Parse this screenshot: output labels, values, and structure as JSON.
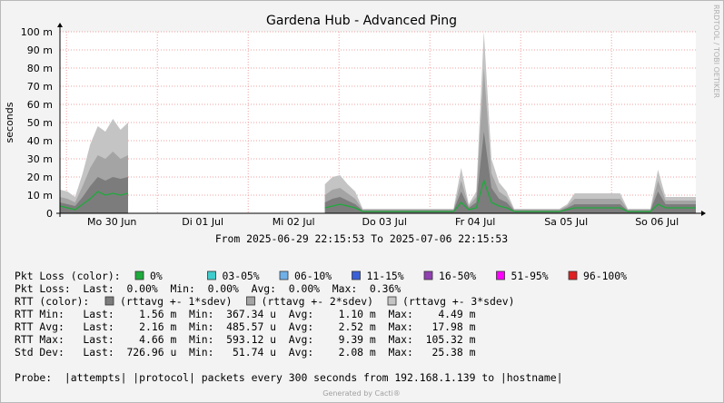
{
  "chart_data": {
    "type": "area",
    "title": "Gardena Hub - Advanced Ping",
    "ylabel": "seconds",
    "side_label": "RRDTOOL / TOBI OETIKER",
    "subtitle": "From 2025-06-29 22:15:53 To 2025-07-06 22:15:53",
    "x": [
      0,
      2,
      4,
      6,
      8,
      10,
      12,
      14,
      16,
      18,
      20,
      22,
      24,
      26,
      28,
      30,
      32,
      34,
      36,
      38,
      40,
      42,
      44,
      46,
      48,
      50,
      52,
      54,
      56,
      58,
      60,
      62,
      64,
      66,
      68,
      70,
      72,
      74,
      76,
      78,
      80,
      82,
      84,
      86,
      88,
      90,
      92,
      94,
      96,
      98,
      100,
      102,
      104,
      106,
      108,
      110,
      112,
      114,
      116,
      118,
      120,
      122,
      124,
      126,
      128,
      130,
      132,
      134,
      136,
      138,
      140,
      142,
      144,
      146,
      148,
      150,
      152,
      154,
      156,
      158,
      160,
      162,
      164,
      166,
      168
    ],
    "xlim": [
      0,
      168
    ],
    "xticks": [
      {
        "value": 13.73,
        "label": "Mo 30 Jun"
      },
      {
        "value": 37.73,
        "label": "Di 01 Jul"
      },
      {
        "value": 61.73,
        "label": "Mi 02 Jul"
      },
      {
        "value": 85.73,
        "label": "Do 03 Jul"
      },
      {
        "value": 109.73,
        "label": "Fr 04 Jul"
      },
      {
        "value": 133.73,
        "label": "Sa 05 Jul"
      },
      {
        "value": 157.73,
        "label": "So 06 Jul"
      }
    ],
    "xgrid": [
      1.73,
      25.73,
      49.73,
      73.73,
      97.73,
      121.73,
      145.73
    ],
    "ylim": [
      0,
      0.1
    ],
    "yticks": [
      0,
      {
        "value": 0.01,
        "label": "10 m"
      },
      {
        "value": 0.02,
        "label": "20 m"
      },
      {
        "value": 0.03,
        "label": "30 m"
      },
      {
        "value": 0.04,
        "label": "40 m"
      },
      {
        "value": 0.05,
        "label": "50 m"
      },
      {
        "value": 0.06,
        "label": "60 m"
      },
      {
        "value": 0.07,
        "label": "70 m"
      },
      {
        "value": 0.08,
        "label": "80 m"
      },
      {
        "value": 0.09,
        "label": "90 m"
      },
      {
        "value": 0.1,
        "label": "100 m"
      }
    ],
    "grid": true,
    "series": [
      {
        "name": "(rttavg +- 3*sdev)",
        "color": "#c4c4c4",
        "values": [
          0.013,
          0.012,
          0.009,
          0.022,
          0.038,
          0.048,
          0.045,
          0.052,
          0.046,
          0.05,
          null,
          null,
          null,
          null,
          null,
          null,
          null,
          null,
          null,
          null,
          null,
          null,
          null,
          null,
          null,
          null,
          null,
          null,
          null,
          null,
          null,
          null,
          null,
          null,
          null,
          0.016,
          0.02,
          0.021,
          0.016,
          0.012,
          0.0025,
          0.0025,
          0.0025,
          0.0025,
          0.0025,
          0.0025,
          0.0025,
          0.0025,
          0.0025,
          0.0025,
          0.0025,
          0.0025,
          0.0025,
          0.025,
          0.005,
          0.012,
          0.1,
          0.03,
          0.017,
          0.012,
          0.0025,
          0.0025,
          0.0025,
          0.0025,
          0.0025,
          0.0025,
          0.0025,
          0.005,
          0.011,
          0.011,
          0.011,
          0.011,
          0.011,
          0.011,
          0.011,
          0.0025,
          0.0025,
          0.0025,
          0.0025,
          0.024,
          0.009,
          0.009,
          0.009,
          0.009,
          0.009
        ]
      },
      {
        "name": "(rttavg +- 2*sdev)",
        "color": "#a4a4a4",
        "values": [
          0.009,
          0.008,
          0.006,
          0.015,
          0.025,
          0.032,
          0.03,
          0.034,
          0.03,
          0.032,
          null,
          null,
          null,
          null,
          null,
          null,
          null,
          null,
          null,
          null,
          null,
          null,
          null,
          null,
          null,
          null,
          null,
          null,
          null,
          null,
          null,
          null,
          null,
          null,
          null,
          0.01,
          0.013,
          0.014,
          0.011,
          0.008,
          0.002,
          0.002,
          0.002,
          0.002,
          0.002,
          0.002,
          0.002,
          0.002,
          0.002,
          0.002,
          0.002,
          0.002,
          0.002,
          0.018,
          0.004,
          0.009,
          0.08,
          0.022,
          0.012,
          0.009,
          0.002,
          0.002,
          0.002,
          0.002,
          0.002,
          0.002,
          0.002,
          0.004,
          0.008,
          0.008,
          0.008,
          0.008,
          0.008,
          0.008,
          0.008,
          0.002,
          0.002,
          0.002,
          0.002,
          0.018,
          0.007,
          0.007,
          0.007,
          0.007,
          0.007
        ]
      },
      {
        "name": "(rttavg +- 1*sdev)",
        "color": "#7c7c7c",
        "values": [
          0.006,
          0.005,
          0.004,
          0.009,
          0.015,
          0.02,
          0.018,
          0.02,
          0.019,
          0.02,
          null,
          null,
          null,
          null,
          null,
          null,
          null,
          null,
          null,
          null,
          null,
          null,
          null,
          null,
          null,
          null,
          null,
          null,
          null,
          null,
          null,
          null,
          null,
          null,
          null,
          0.006,
          0.008,
          0.009,
          0.007,
          0.005,
          0.0015,
          0.0015,
          0.0015,
          0.0015,
          0.0015,
          0.0015,
          0.0015,
          0.0015,
          0.0015,
          0.0015,
          0.0015,
          0.0015,
          0.0015,
          0.012,
          0.003,
          0.006,
          0.045,
          0.014,
          0.008,
          0.006,
          0.0015,
          0.0015,
          0.0015,
          0.0015,
          0.0015,
          0.0015,
          0.0015,
          0.003,
          0.005,
          0.005,
          0.005,
          0.005,
          0.005,
          0.005,
          0.005,
          0.0015,
          0.0015,
          0.0015,
          0.0015,
          0.012,
          0.005,
          0.005,
          0.005,
          0.005,
          0.005
        ]
      },
      {
        "name": "0%",
        "color": "#1faa3c",
        "values": [
          0.004,
          0.003,
          0.002,
          0.005,
          0.008,
          0.012,
          0.01,
          0.011,
          0.01,
          0.011,
          null,
          null,
          null,
          null,
          null,
          null,
          null,
          null,
          null,
          null,
          null,
          null,
          null,
          null,
          null,
          null,
          null,
          null,
          null,
          null,
          null,
          null,
          null,
          null,
          null,
          0.003,
          0.004,
          0.005,
          0.004,
          0.003,
          0.001,
          0.001,
          0.001,
          0.001,
          0.001,
          0.001,
          0.001,
          0.001,
          0.001,
          0.001,
          0.001,
          0.001,
          0.001,
          0.006,
          0.002,
          0.003,
          0.018,
          0.006,
          0.004,
          0.003,
          0.001,
          0.001,
          0.001,
          0.001,
          0.001,
          0.001,
          0.001,
          0.002,
          0.003,
          0.003,
          0.003,
          0.003,
          0.003,
          0.003,
          0.003,
          0.001,
          0.001,
          0.001,
          0.001,
          0.005,
          0.003,
          0.003,
          0.003,
          0.003,
          0.003
        ]
      }
    ]
  },
  "legend": {
    "loss_label": "Pkt Loss (color):",
    "loss_colors": [
      {
        "label": "03-05%",
        "color": "#40cccc"
      },
      {
        "label": "06-10%",
        "color": "#70b0e8"
      },
      {
        "label": "11-15%",
        "color": "#3a60d8"
      },
      {
        "label": "16-50%",
        "color": "#9040b0"
      },
      {
        "label": "51-95%",
        "color": "#ff00ff"
      },
      {
        "label": "96-100%",
        "color": "#e02020"
      }
    ],
    "rtt_label": "RTT (color):",
    "lines": [
      "Pkt Loss:  Last:  0.00%  Min:  0.00%  Avg:  0.00%  Max:  0.36%",
      "RTT Min:   Last:    1.56 m  Min:  367.34 u  Avg:    1.10 m  Max:    4.49 m",
      "RTT Avg:   Last:    2.16 m  Min:  485.57 u  Avg:    2.52 m  Max:   17.98 m",
      "RTT Max:   Last:    4.66 m  Min:  593.12 u  Avg:    9.39 m  Max:  105.32 m",
      "Std Dev:   Last:  726.96 u  Min:   51.74 u  Avg:    2.08 m  Max:   25.38 m"
    ],
    "probe": "Probe:  |attempts| |protocol| packets every 300 seconds from 192.168.1.139 to |hostname|"
  },
  "footer": "Generated by Cacti®"
}
